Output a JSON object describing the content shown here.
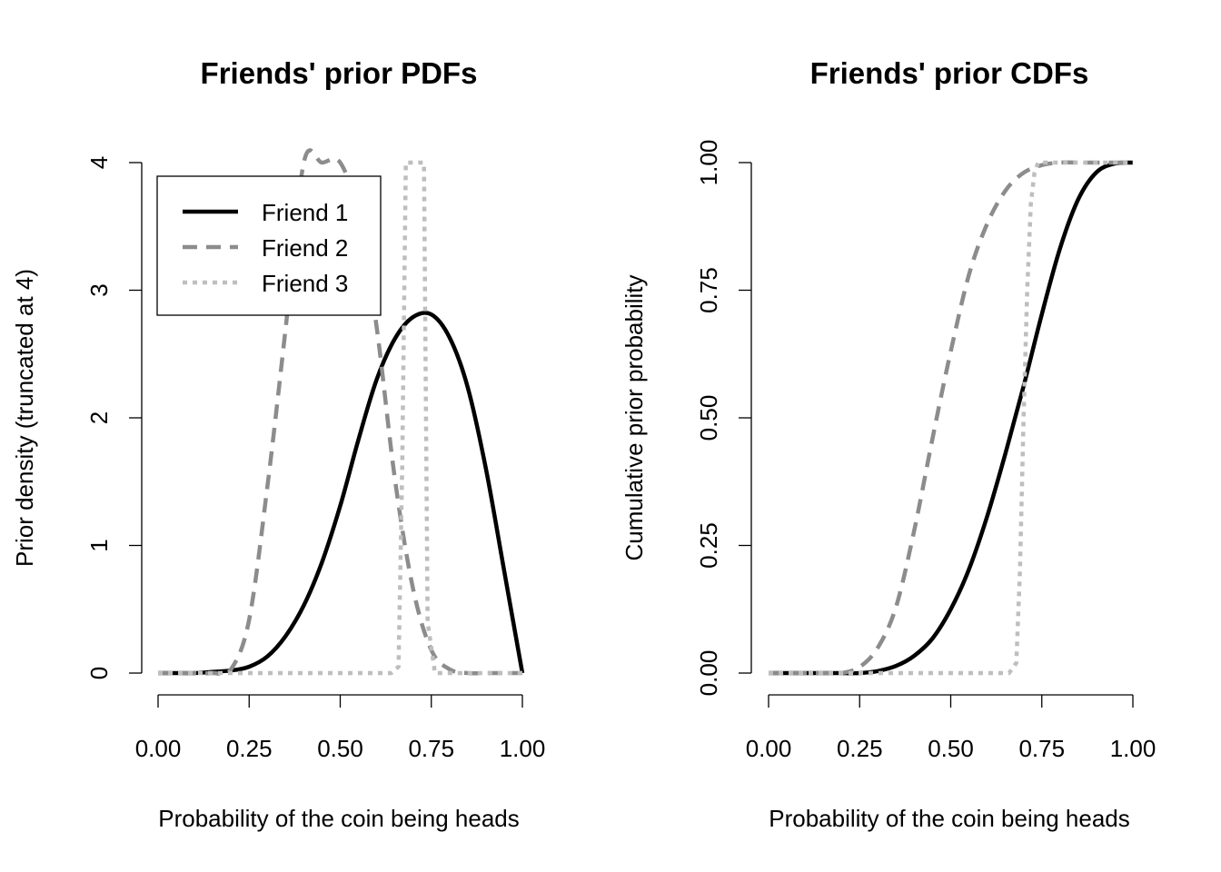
{
  "chart_data": [
    {
      "type": "line",
      "title": "Friends' prior PDFs",
      "xlabel": "Probability of the coin being heads",
      "ylabel": "Prior density (truncated at 4)",
      "xlim": [
        0,
        1
      ],
      "ylim": [
        0,
        4
      ],
      "x_ticks": [
        "0.00",
        "0.25",
        "0.50",
        "0.75",
        "1.00"
      ],
      "y_ticks": [
        "0",
        "1",
        "2",
        "3",
        "4"
      ],
      "legend": {
        "placement": "top-left",
        "entries": [
          "Friend 1",
          "Friend 2",
          "Friend 3"
        ]
      },
      "x": [
        0.0,
        0.05,
        0.1,
        0.15,
        0.2,
        0.25,
        0.3,
        0.35,
        0.4,
        0.45,
        0.5,
        0.55,
        0.6,
        0.65,
        0.7,
        0.75,
        0.8,
        0.85,
        0.9,
        0.95,
        1.0
      ],
      "series": [
        {
          "name": "Friend 1",
          "color": "#000000",
          "style": "solid",
          "values": [
            0.0,
            0.0,
            0.0,
            0.01,
            0.02,
            0.05,
            0.13,
            0.29,
            0.53,
            0.87,
            1.31,
            1.83,
            2.3,
            2.62,
            2.79,
            2.81,
            2.63,
            2.24,
            1.6,
            0.8,
            0.0
          ]
        },
        {
          "name": "Friend 2",
          "color": "#8c8c8c",
          "style": "dashed",
          "values": [
            0.0,
            0.0,
            0.0,
            0.0,
            0.03,
            0.42,
            1.46,
            2.7,
            4.0,
            4.0,
            4.0,
            3.58,
            2.71,
            1.52,
            0.66,
            0.18,
            0.03,
            0.0,
            0.0,
            0.0,
            0.0
          ]
        },
        {
          "name": "Friend 3",
          "color": "#bebebe",
          "style": "dotted",
          "x": [
            0.0,
            0.64,
            0.66,
            0.67,
            0.68,
            0.7,
            0.72,
            0.73,
            0.74,
            0.76,
            1.0
          ],
          "values": [
            0.0,
            0.0,
            0.05,
            1.6,
            4.0,
            4.0,
            4.0,
            4.0,
            0.4,
            0.0,
            0.0
          ]
        }
      ]
    },
    {
      "type": "line",
      "title": "Friends' prior CDFs",
      "xlabel": "Probability of the coin being heads",
      "ylabel": "Cumulative prior probability",
      "xlim": [
        0,
        1
      ],
      "ylim": [
        0,
        1
      ],
      "x_ticks": [
        "0.00",
        "0.25",
        "0.50",
        "0.75",
        "1.00"
      ],
      "y_ticks": [
        "0.00",
        "0.25",
        "0.50",
        "0.75",
        "1.00"
      ],
      "x": [
        0.0,
        0.05,
        0.1,
        0.15,
        0.2,
        0.25,
        0.3,
        0.35,
        0.4,
        0.45,
        0.5,
        0.55,
        0.6,
        0.65,
        0.7,
        0.75,
        0.8,
        0.85,
        0.9,
        0.95,
        1.0
      ],
      "series": [
        {
          "name": "Friend 1",
          "color": "#000000",
          "style": "solid",
          "values": [
            0.0,
            0.0,
            0.0,
            0.0,
            0.0,
            0.0,
            0.004,
            0.014,
            0.034,
            0.068,
            0.125,
            0.203,
            0.307,
            0.43,
            0.562,
            0.703,
            0.832,
            0.928,
            0.981,
            0.998,
            1.0
          ]
        },
        {
          "name": "Friend 2",
          "color": "#8c8c8c",
          "style": "dashed",
          "values": [
            0.0,
            0.0,
            0.0,
            0.0,
            0.0,
            0.012,
            0.05,
            0.13,
            0.28,
            0.46,
            0.63,
            0.78,
            0.88,
            0.945,
            0.98,
            0.995,
            1.0,
            1.0,
            1.0,
            1.0,
            1.0
          ]
        },
        {
          "name": "Friend 3",
          "color": "#bebebe",
          "style": "dotted",
          "x": [
            0.0,
            0.66,
            0.68,
            0.69,
            0.7,
            0.71,
            0.72,
            0.73,
            0.74,
            0.76,
            1.0
          ],
          "values": [
            0.0,
            0.0,
            0.02,
            0.2,
            0.5,
            0.75,
            0.92,
            0.98,
            1.0,
            1.0,
            1.0
          ]
        }
      ]
    }
  ]
}
